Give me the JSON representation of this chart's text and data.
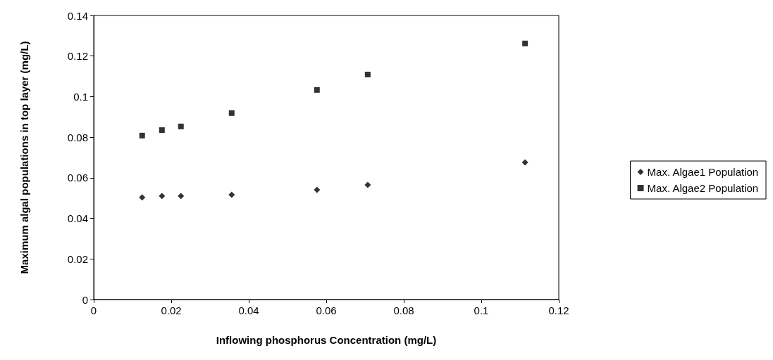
{
  "chart_data": {
    "type": "scatter",
    "xlabel": "Inflowing phosphorus Concentration (mg/L)",
    "ylabel": "Maximum algal populations in top layer (mg/L)",
    "x": [
      0.0125,
      0.0176,
      0.0225,
      0.0356,
      0.0576,
      0.0707,
      0.1113
    ],
    "series": [
      {
        "name": "Max. Algae1 Population",
        "color": "#000000",
        "marker": "diamond",
        "values": [
          0.0503,
          0.051,
          0.051,
          0.0516,
          0.0541,
          0.0565,
          0.0676
        ]
      },
      {
        "name": "Max. Algae2 Population",
        "color": "#000000",
        "marker": "square",
        "values": [
          0.0808,
          0.0835,
          0.0853,
          0.0919,
          0.1033,
          0.1109,
          0.1262
        ]
      }
    ],
    "xlim": [
      0,
      0.12
    ],
    "xticks": [
      0,
      0.02,
      0.04,
      0.06,
      0.08,
      0.1,
      0.12
    ],
    "ylim": [
      0,
      0.14
    ],
    "yticks": [
      0,
      0.02,
      0.04,
      0.06,
      0.08,
      0.1,
      0.12,
      0.14
    ],
    "grid": false,
    "legend": "right"
  }
}
